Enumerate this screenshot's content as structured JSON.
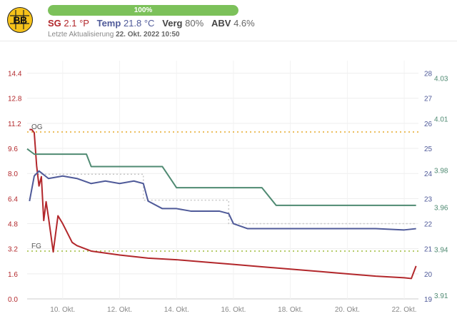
{
  "header": {
    "logo_text": "BB",
    "progress": {
      "label": "100%",
      "value": 100
    },
    "stats": [
      {
        "label": "SG",
        "value": "2.1 °P"
      },
      {
        "label": "Temp",
        "value": "21.8 °C"
      },
      {
        "label": "Verg",
        "value": "80%"
      },
      {
        "label": "ABV",
        "value": "4.6%"
      }
    ],
    "last_update_label": "Letzte Aktualisierung",
    "last_update_value": "22. Okt. 2022 10:50"
  },
  "colors": {
    "sg": "#b2272b",
    "temp": "#4f5a99",
    "gravity": "#4f8a72",
    "progress": "#7cc15a",
    "reference": "#c9b81c",
    "logo": "#f6c21a"
  },
  "chart_data": {
    "type": "line",
    "x_labels": [
      "10. Okt.",
      "12. Okt.",
      "14. Okt.",
      "16. Okt.",
      "18. Okt.",
      "20. Okt.",
      "22. Okt."
    ],
    "x_range": [
      "2022-10-08 18:00",
      "2022-10-22 12:00"
    ],
    "y_left": {
      "ticks": [
        "0.0",
        "1.6",
        "3.2",
        "4.8",
        "6.4",
        "8.0",
        "9.6",
        "11.2",
        "12.8",
        "14.4"
      ],
      "range": [
        0,
        15.2
      ]
    },
    "y_right_temp": {
      "ticks": [
        "19",
        "20",
        "21",
        "22",
        "23",
        "24",
        "25",
        "26",
        "27",
        "28"
      ],
      "range": [
        19,
        28.5
      ]
    },
    "y_right_gravity": {
      "ticks": [
        "3.91",
        "3.94",
        "3.96",
        "3.98",
        "4.01",
        "4.03"
      ]
    },
    "reference_lines": [
      {
        "label": "OG",
        "value": 10.65
      },
      {
        "label": "FG",
        "value": 3.05
      }
    ],
    "series": [
      {
        "name": "SG",
        "axis": "left",
        "x": [
          "2022-10-08 20:00",
          "2022-10-08 22:00",
          "2022-10-09 00:00",
          "2022-10-09 02:00",
          "2022-10-09 04:00",
          "2022-10-09 06:00",
          "2022-10-09 08:00",
          "2022-10-09 10:00",
          "2022-10-09 12:00",
          "2022-10-09 16:00",
          "2022-10-09 20:00",
          "2022-10-10 00:00",
          "2022-10-10 04:00",
          "2022-10-10 08:00",
          "2022-10-10 12:00",
          "2022-10-11 00:00",
          "2022-10-12 00:00",
          "2022-10-13 00:00",
          "2022-10-14 00:00",
          "2022-10-15 00:00",
          "2022-10-16 00:00",
          "2022-10-17 00:00",
          "2022-10-18 00:00",
          "2022-10-19 00:00",
          "2022-10-20 00:00",
          "2022-10-21 00:00",
          "2022-10-22 00:00",
          "2022-10-22 06:00",
          "2022-10-22 10:00"
        ],
        "y": [
          10.8,
          10.8,
          10.6,
          8.5,
          7.2,
          7.8,
          5.0,
          6.2,
          5.2,
          3.0,
          5.3,
          4.8,
          4.2,
          3.6,
          3.4,
          3.05,
          2.8,
          2.6,
          2.5,
          2.35,
          2.2,
          2.05,
          1.9,
          1.75,
          1.6,
          1.45,
          1.35,
          1.3,
          2.1
        ]
      },
      {
        "name": "Temp",
        "axis": "right_temp",
        "x": [
          "2022-10-08 20:00",
          "2022-10-09 00:00",
          "2022-10-09 04:00",
          "2022-10-09 12:00",
          "2022-10-10 00:00",
          "2022-10-10 12:00",
          "2022-10-11 00:00",
          "2022-10-11 12:00",
          "2022-10-12 00:00",
          "2022-10-12 12:00",
          "2022-10-12 20:00",
          "2022-10-13 00:00",
          "2022-10-13 12:00",
          "2022-10-14 00:00",
          "2022-10-14 12:00",
          "2022-10-15 00:00",
          "2022-10-15 12:00",
          "2022-10-15 20:00",
          "2022-10-16 00:00",
          "2022-10-16 12:00",
          "2022-10-17 00:00",
          "2022-10-18 00:00",
          "2022-10-19 00:00",
          "2022-10-20 00:00",
          "2022-10-21 00:00",
          "2022-10-22 00:00",
          "2022-10-22 10:00"
        ],
        "y": [
          22.9,
          23.9,
          24.1,
          23.8,
          23.9,
          23.8,
          23.6,
          23.7,
          23.6,
          23.7,
          23.6,
          22.9,
          22.6,
          22.6,
          22.5,
          22.5,
          22.5,
          22.4,
          22.0,
          21.8,
          21.8,
          21.8,
          21.8,
          21.8,
          21.8,
          21.75,
          21.8
        ]
      },
      {
        "name": "Gravity",
        "axis": "right_gravity",
        "x": [
          "2022-10-08 18:00",
          "2022-10-09 00:00",
          "2022-10-10 00:00",
          "2022-10-10 20:00",
          "2022-10-11 00:00",
          "2022-10-11 12:00",
          "2022-10-12 00:00",
          "2022-10-13 00:00",
          "2022-10-13 12:00",
          "2022-10-14 00:00",
          "2022-10-15 00:00",
          "2022-10-16 00:00",
          "2022-10-17 00:00",
          "2022-10-17 12:00",
          "2022-10-18 00:00",
          "2022-10-19 00:00",
          "2022-10-20 00:00",
          "2022-10-21 00:00",
          "2022-10-22 00:00",
          "2022-10-22 10:00"
        ],
        "y": [
          3.995,
          3.992,
          3.992,
          3.992,
          3.985,
          3.985,
          3.985,
          3.985,
          3.985,
          3.973,
          3.973,
          3.973,
          3.973,
          3.963,
          3.963,
          3.963,
          3.963,
          3.963,
          3.963,
          3.963
        ]
      }
    ]
  }
}
